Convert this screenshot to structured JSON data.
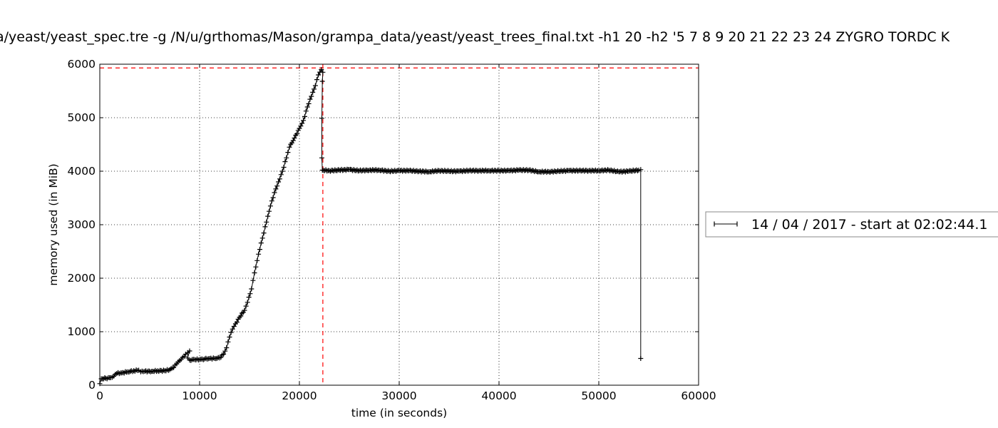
{
  "chart_data": {
    "type": "line",
    "title": "a/yeast/yeast_spec.tre -g /N/u/grthomas/Mason/grampa_data/yeast/yeast_trees_final.txt -h1 20 -h2 '5 7 8 9 20 21 22 23 24 ZYGRO TORDC K",
    "xlabel": "time (in seconds)",
    "ylabel": "memory used (in MiB)",
    "xlim": [
      0,
      60000
    ],
    "ylim": [
      0,
      6000
    ],
    "xticks": [
      0,
      10000,
      20000,
      30000,
      40000,
      50000,
      60000
    ],
    "yticks": [
      0,
      1000,
      2000,
      3000,
      4000,
      5000,
      6000
    ],
    "grid": true,
    "legend_position": "right-outside",
    "series": [
      {
        "name": "14 / 04 / 2017 - start at 02:02:44.1",
        "color": "#000000",
        "marker": "+",
        "points": [
          [
            0,
            30
          ],
          [
            150,
            120
          ],
          [
            600,
            130
          ],
          [
            1100,
            140
          ],
          [
            1400,
            170
          ],
          [
            1700,
            220
          ],
          [
            2200,
            230
          ],
          [
            2800,
            250
          ],
          [
            3400,
            270
          ],
          [
            3900,
            280
          ],
          [
            4100,
            250
          ],
          [
            4500,
            260
          ],
          [
            5200,
            260
          ],
          [
            5800,
            270
          ],
          [
            6500,
            270
          ],
          [
            7000,
            290
          ],
          [
            7400,
            330
          ],
          [
            7700,
            400
          ],
          [
            8000,
            460
          ],
          [
            8300,
            520
          ],
          [
            8600,
            580
          ],
          [
            8800,
            610
          ],
          [
            9000,
            640
          ],
          [
            8800,
            510
          ],
          [
            9000,
            470
          ],
          [
            9500,
            480
          ],
          [
            10000,
            480
          ],
          [
            10500,
            490
          ],
          [
            11000,
            500
          ],
          [
            11500,
            500
          ],
          [
            12000,
            510
          ],
          [
            12400,
            580
          ],
          [
            12700,
            700
          ],
          [
            13000,
            900
          ],
          [
            13300,
            1050
          ],
          [
            13600,
            1150
          ],
          [
            14000,
            1270
          ],
          [
            14500,
            1400
          ],
          [
            14800,
            1550
          ],
          [
            15200,
            1800
          ],
          [
            15500,
            2100
          ],
          [
            15900,
            2450
          ],
          [
            16300,
            2750
          ],
          [
            16700,
            3050
          ],
          [
            17100,
            3350
          ],
          [
            17500,
            3600
          ],
          [
            17900,
            3800
          ],
          [
            18300,
            4000
          ],
          [
            18700,
            4250
          ],
          [
            19000,
            4450
          ],
          [
            19500,
            4620
          ],
          [
            20000,
            4800
          ],
          [
            20400,
            4950
          ],
          [
            20800,
            5200
          ],
          [
            21200,
            5400
          ],
          [
            21600,
            5600
          ],
          [
            21900,
            5800
          ],
          [
            22200,
            5900
          ],
          [
            22350,
            5850
          ],
          [
            22300,
            5680
          ],
          [
            22250,
            4990
          ],
          [
            22250,
            4250
          ],
          [
            22300,
            4020
          ],
          [
            23000,
            4010
          ],
          [
            24000,
            4020
          ],
          [
            25000,
            4030
          ],
          [
            26000,
            4010
          ],
          [
            27000,
            4020
          ],
          [
            28000,
            4020
          ],
          [
            29000,
            4000
          ],
          [
            30000,
            4010
          ],
          [
            31000,
            4010
          ],
          [
            32000,
            4000
          ],
          [
            33000,
            3990
          ],
          [
            34000,
            4010
          ],
          [
            35000,
            4000
          ],
          [
            36000,
            4000
          ],
          [
            37000,
            4010
          ],
          [
            38000,
            4010
          ],
          [
            39000,
            4010
          ],
          [
            40000,
            4010
          ],
          [
            41000,
            4010
          ],
          [
            42000,
            4020
          ],
          [
            43000,
            4020
          ],
          [
            44000,
            3990
          ],
          [
            45000,
            3990
          ],
          [
            46000,
            4000
          ],
          [
            47000,
            4010
          ],
          [
            48000,
            4010
          ],
          [
            49000,
            4010
          ],
          [
            50000,
            4010
          ],
          [
            51000,
            4020
          ],
          [
            52000,
            3990
          ],
          [
            53000,
            4000
          ],
          [
            54000,
            4020
          ],
          [
            54200,
            4030
          ],
          [
            54200,
            500
          ]
        ]
      }
    ],
    "reference_lines": [
      {
        "orientation": "horizontal",
        "value": 5930,
        "color": "#ff0000",
        "style": "dashed"
      },
      {
        "orientation": "vertical",
        "value": 22350,
        "color": "#ff0000",
        "style": "dashed"
      }
    ]
  }
}
